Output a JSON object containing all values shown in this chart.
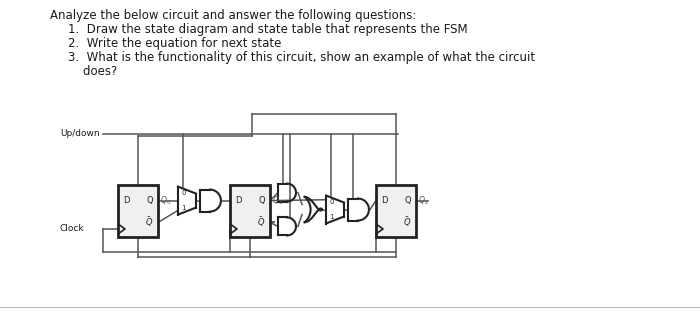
{
  "bg_color": "#ffffff",
  "text_color": "#1a1a1a",
  "line_color": "#444444",
  "title_lines": [
    "Analyze the below circuit and answer the following questions:",
    "1.  Draw the state diagram and state table that represents the FSM",
    "2.  Write the equation for next state",
    "3.  What is the functionality of this circuit, show an example of what the circuit",
    "    does?"
  ],
  "font_size_title": 8.5
}
